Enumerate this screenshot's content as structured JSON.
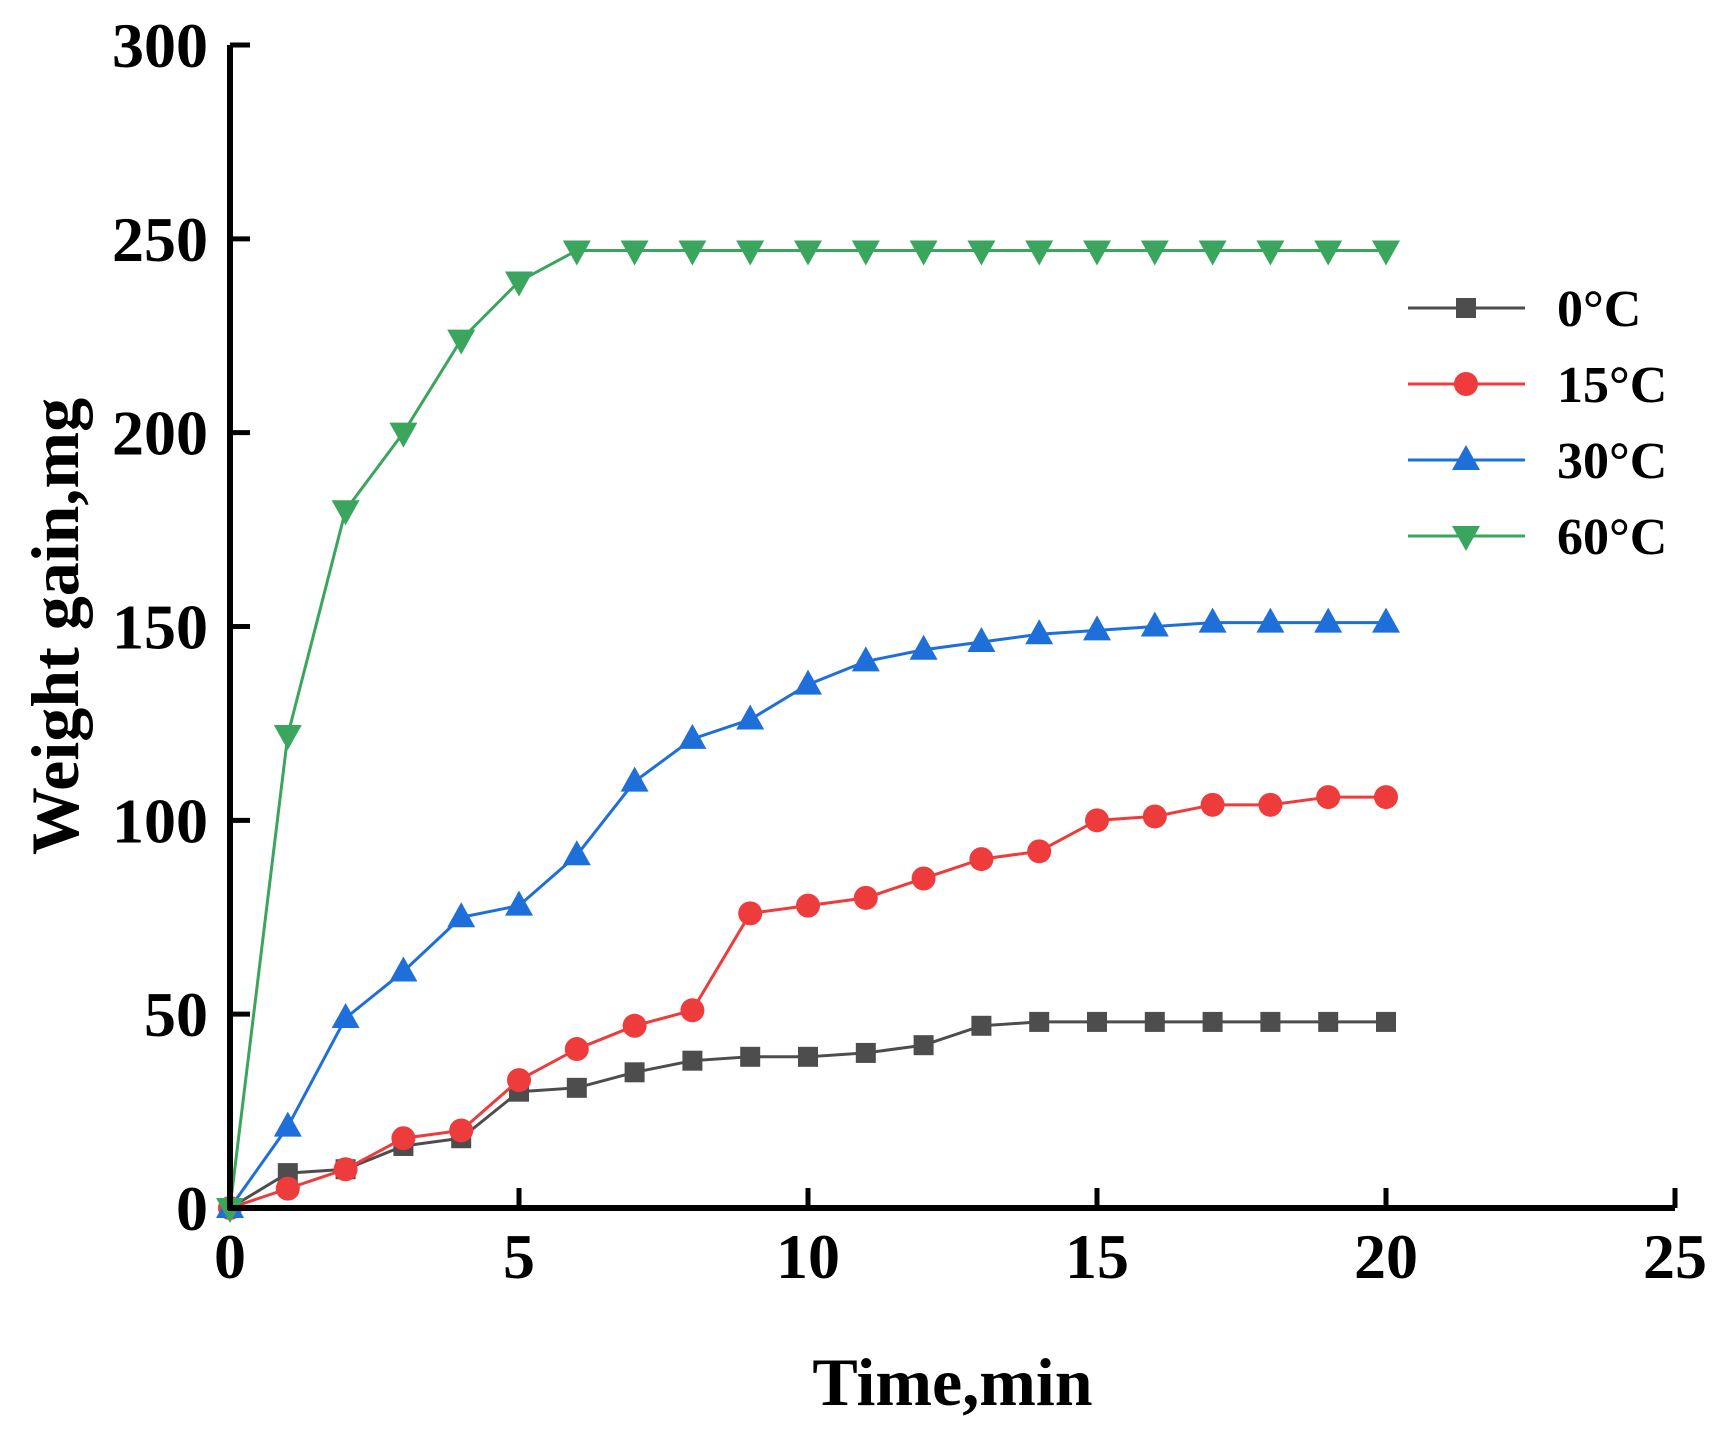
{
  "chart_data": {
    "type": "line",
    "title": "",
    "xlabel": "Time,min",
    "ylabel": "Weight gain,mg",
    "xlim": [
      0,
      25
    ],
    "ylim": [
      0,
      300
    ],
    "xticks": [
      0,
      5,
      10,
      15,
      20,
      25
    ],
    "yticks": [
      0,
      50,
      100,
      150,
      200,
      250,
      300
    ],
    "x": [
      0,
      1,
      2,
      3,
      4,
      5,
      6,
      7,
      8,
      9,
      10,
      11,
      12,
      13,
      14,
      15,
      16,
      17,
      18,
      19,
      20
    ],
    "grid": false,
    "legend_position": "right",
    "series": [
      {
        "name": "0°C",
        "color": "#4d4d4d",
        "marker": "square",
        "values": [
          0,
          9,
          10,
          16,
          18,
          30,
          31,
          35,
          38,
          39,
          39,
          40,
          42,
          47,
          48,
          48,
          48,
          48,
          48,
          48,
          48
        ]
      },
      {
        "name": "15°C",
        "color": "#ee3b3b",
        "marker": "circle",
        "values": [
          0,
          5,
          10,
          18,
          20,
          33,
          41,
          47,
          51,
          76,
          78,
          80,
          85,
          90,
          92,
          100,
          101,
          104,
          104,
          106,
          106
        ]
      },
      {
        "name": "30°C",
        "color": "#1e6fd9",
        "marker": "triangle-up",
        "values": [
          0,
          21,
          49,
          61,
          75,
          78,
          91,
          110,
          121,
          126,
          135,
          141,
          144,
          146,
          148,
          149,
          150,
          151,
          151,
          151,
          151
        ]
      },
      {
        "name": "60°C",
        "color": "#3aa55c",
        "marker": "triangle-down",
        "values": [
          0,
          122,
          180,
          200,
          224,
          239,
          247,
          247,
          247,
          247,
          247,
          247,
          247,
          247,
          247,
          247,
          247,
          247,
          247,
          247,
          247
        ]
      }
    ]
  }
}
